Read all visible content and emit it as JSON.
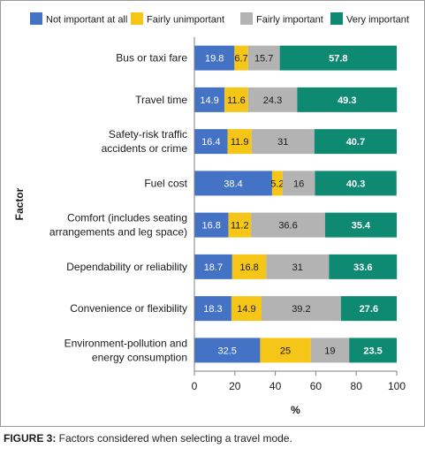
{
  "chart_data": {
    "type": "bar",
    "stacked": true,
    "orientation": "horizontal",
    "title": "",
    "xlabel": "%",
    "ylabel": "Factor",
    "xlim": [
      0,
      100
    ],
    "xticks": [
      0,
      20,
      40,
      60,
      80,
      100
    ],
    "grid": false,
    "legend_position": "top",
    "categories": [
      "Bus or taxi fare",
      "Travel time",
      "Safety-risk traffic accidents or crime",
      "Fuel cost",
      "Comfort (includes seating arrangements and leg space)",
      "Dependability or reliability",
      "Convenience or flexibility",
      "Environment-pollution and energy consumption"
    ],
    "category_lines": [
      [
        "Bus or taxi fare"
      ],
      [
        "Travel time"
      ],
      [
        "Safety-risk traffic",
        "accidents or crime"
      ],
      [
        "Fuel cost"
      ],
      [
        "Comfort (includes seating",
        "arrangements and leg space)"
      ],
      [
        "Dependability or reliability"
      ],
      [
        "Convenience or flexibility"
      ],
      [
        "Environment-pollution and",
        "energy consumption"
      ]
    ],
    "series": [
      {
        "name": "Not important at all",
        "color": "#4472c4",
        "label_color": "#ffffff",
        "values": [
          19.8,
          14.9,
          16.4,
          38.4,
          16.8,
          18.7,
          18.3,
          32.5
        ]
      },
      {
        "name": "Fairly unimportant",
        "color": "#f5c518",
        "label_color": "#1a1a1a",
        "values": [
          6.7,
          11.6,
          11.9,
          5.2,
          11.2,
          16.8,
          14.9,
          25
        ]
      },
      {
        "name": "Fairly important",
        "color": "#b3b3b3",
        "label_color": "#1a1a1a",
        "values": [
          15.7,
          24.3,
          31,
          16,
          36.6,
          31,
          39.2,
          19
        ]
      },
      {
        "name": "Very important",
        "color": "#0f8a72",
        "label_color": "#ffffff",
        "bold_labels": true,
        "values": [
          57.8,
          49.3,
          40.7,
          40.3,
          35.4,
          33.6,
          27.6,
          23.5
        ]
      }
    ]
  },
  "caption": {
    "label": "FIGURE 3:",
    "text": " Factors considered when selecting a travel mode."
  }
}
